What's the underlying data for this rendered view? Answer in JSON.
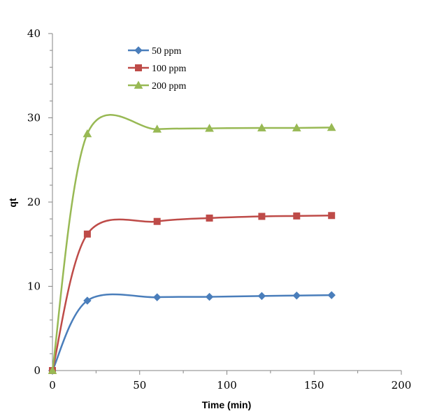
{
  "chart_data": {
    "type": "line",
    "title": "",
    "xlabel": "Time (min)",
    "ylabel": "qt",
    "xlim": [
      0,
      200
    ],
    "ylim": [
      0,
      40
    ],
    "xticks": [
      0,
      50,
      100,
      150,
      200
    ],
    "yticks": [
      0,
      10,
      20,
      30,
      40
    ],
    "grid": false,
    "legend_position": "top-left",
    "smooth": true,
    "series": [
      {
        "name": "50 ppm",
        "color": "#4A7EBB",
        "marker": "diamond",
        "x": [
          0,
          20,
          60,
          90,
          120,
          140,
          160
        ],
        "y": [
          0,
          8.3,
          8.7,
          8.75,
          8.85,
          8.9,
          8.95
        ]
      },
      {
        "name": "100 ppm",
        "color": "#BE4B48",
        "marker": "square",
        "x": [
          0,
          20,
          60,
          90,
          120,
          140,
          160
        ],
        "y": [
          0,
          16.2,
          17.7,
          18.1,
          18.3,
          18.35,
          18.4
        ]
      },
      {
        "name": "200 ppm",
        "color": "#98B954",
        "marker": "triangle",
        "x": [
          0,
          20,
          60,
          90,
          120,
          140,
          160
        ],
        "y": [
          0,
          28.1,
          28.65,
          28.75,
          28.8,
          28.8,
          28.85
        ]
      }
    ]
  }
}
